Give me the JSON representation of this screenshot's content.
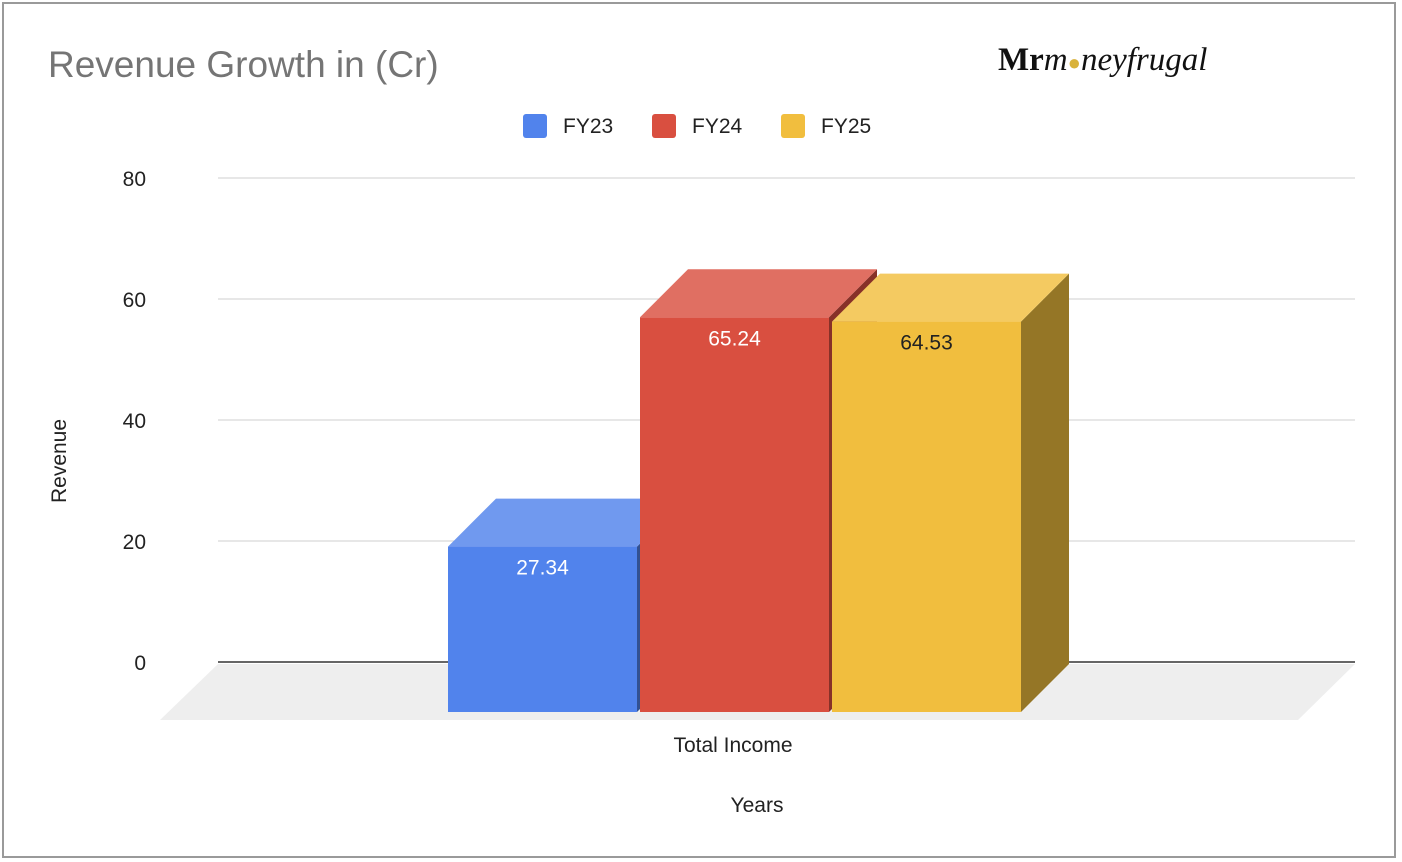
{
  "logo_text": "Mrmoneyfrugal",
  "chart_data": {
    "type": "bar",
    "style": "3d",
    "title": "Revenue Growth in (Cr)",
    "xlabel": "Years",
    "ylabel": "Revenue",
    "categories": [
      "Total Income"
    ],
    "series": [
      {
        "name": "FY23",
        "values": [
          27.34
        ],
        "color": "#5183ec",
        "label": "27.34"
      },
      {
        "name": "FY24",
        "values": [
          65.24
        ],
        "color": "#d94f40",
        "label": "65.24"
      },
      {
        "name": "FY25",
        "values": [
          64.53
        ],
        "color": "#f1be3e",
        "label": "64.53"
      }
    ],
    "ylim": [
      0,
      80
    ],
    "yticks": [
      "0",
      "20",
      "40",
      "60",
      "80"
    ],
    "legend_position": "top",
    "grid": true
  }
}
